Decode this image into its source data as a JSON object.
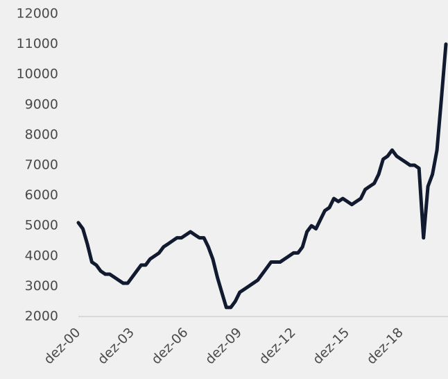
{
  "chart_data": {
    "type": "line",
    "categories": [
      "dez-00",
      null,
      null,
      null,
      null,
      null,
      null,
      null,
      null,
      null,
      null,
      null,
      "dez-03",
      null,
      null,
      null,
      null,
      null,
      null,
      null,
      null,
      null,
      null,
      null,
      "dez-06",
      null,
      null,
      null,
      null,
      null,
      null,
      null,
      null,
      null,
      null,
      null,
      "dez-09",
      null,
      null,
      null,
      null,
      null,
      null,
      null,
      null,
      null,
      null,
      null,
      "dez-12",
      null,
      null,
      null,
      null,
      null,
      null,
      null,
      null,
      null,
      null,
      null,
      "dez-15",
      null,
      null,
      null,
      null,
      null,
      null,
      null,
      null,
      null,
      null,
      null,
      "dez-18",
      null,
      null,
      null,
      null,
      null,
      null,
      null,
      null,
      null,
      null
    ],
    "series": [
      {
        "color": "#111a2e",
        "values": [
          5100,
          4900,
          4400,
          3800,
          3700,
          3500,
          3400,
          3400,
          3300,
          3200,
          3100,
          3100,
          3300,
          3500,
          3700,
          3700,
          3900,
          4000,
          4100,
          4300,
          4400,
          4500,
          4600,
          4600,
          4700,
          4800,
          4700,
          4600,
          4600,
          4300,
          3900,
          3300,
          2800,
          2300,
          2300,
          2500,
          2800,
          2900,
          3000,
          3100,
          3200,
          3400,
          3600,
          3800,
          3800,
          3800,
          3900,
          4000,
          4100,
          4100,
          4300,
          4800,
          5000,
          4900,
          5200,
          5500,
          5600,
          5900,
          5800,
          5900,
          5800,
          5700,
          5800,
          5900,
          6200,
          6300,
          6400,
          6700,
          7200,
          7300,
          7500,
          7300,
          7200,
          7100,
          7000,
          7000,
          6900,
          4600,
          6300,
          6700,
          7500,
          9200,
          11000
        ]
      }
    ],
    "ylim": [
      2000,
      12000
    ],
    "yticks": [
      2000,
      3000,
      4000,
      5000,
      6000,
      7000,
      8000,
      9000,
      10000,
      11000,
      12000
    ]
  }
}
